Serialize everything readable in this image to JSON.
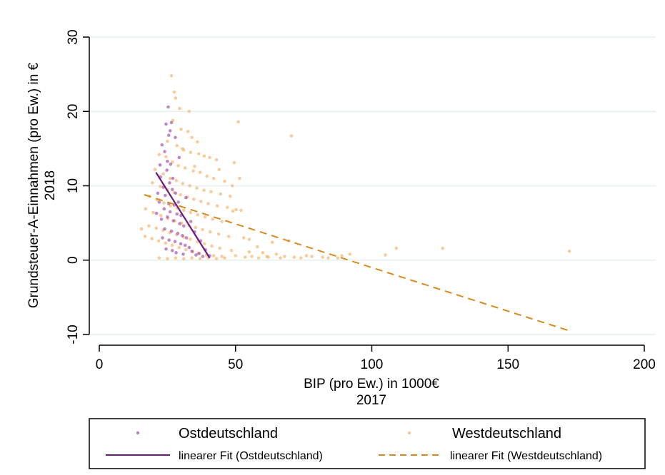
{
  "chart_data": {
    "type": "scatter",
    "title": "",
    "xlabel": "BIP (pro Ew.) in 1000€",
    "xlabel_sub": "2017",
    "ylabel": "Grundsteuer-A-Einnahmen (pro Ew.) in €",
    "ylabel_sub": "2018",
    "xlim": [
      -4,
      204
    ],
    "ylim": [
      -12,
      31
    ],
    "x_ticks": [
      0,
      50,
      100,
      150,
      200
    ],
    "x_tick_labels": [
      "0",
      "50",
      "100",
      "150",
      "200"
    ],
    "y_ticks": [
      -10,
      0,
      10,
      20,
      30
    ],
    "y_tick_labels": [
      "-10",
      "0",
      "10",
      "20",
      "30"
    ],
    "grid": "horizontal",
    "legend_position": "bottom",
    "colors": {
      "ost": "#8a2a9a",
      "west": "#f5a24b",
      "ost_fit": "#6b1b7a",
      "west_fit": "#d98a1c",
      "grid": "#e6efef"
    },
    "series": [
      {
        "name": "Ostdeutschland",
        "kind": "scatter",
        "points": [
          [
            24.5,
            18.3
          ],
          [
            26.0,
            17.4
          ],
          [
            25.5,
            16.8
          ],
          [
            26.5,
            18.5
          ],
          [
            23.0,
            15.5
          ],
          [
            24.0,
            14.6
          ],
          [
            25.0,
            13.3
          ],
          [
            26.2,
            12.9
          ],
          [
            22.5,
            11.2
          ],
          [
            24.8,
            12.1
          ],
          [
            27.0,
            11.0
          ],
          [
            25.8,
            10.4
          ],
          [
            23.5,
            9.8
          ],
          [
            26.8,
            9.5
          ],
          [
            28.0,
            9.0
          ],
          [
            24.2,
            8.7
          ],
          [
            22.0,
            7.8
          ],
          [
            25.5,
            7.6
          ],
          [
            27.5,
            7.4
          ],
          [
            29.0,
            7.8
          ],
          [
            23.8,
            6.9
          ],
          [
            26.0,
            6.5
          ],
          [
            28.5,
            6.2
          ],
          [
            30.0,
            6.0
          ],
          [
            22.8,
            5.5
          ],
          [
            25.0,
            5.8
          ],
          [
            27.2,
            5.3
          ],
          [
            29.5,
            4.9
          ],
          [
            31.0,
            4.6
          ],
          [
            24.0,
            4.2
          ],
          [
            26.5,
            3.9
          ],
          [
            28.8,
            3.6
          ],
          [
            30.5,
            3.3
          ],
          [
            32.0,
            3.0
          ],
          [
            23.2,
            3.0
          ],
          [
            25.6,
            2.7
          ],
          [
            27.8,
            2.5
          ],
          [
            29.9,
            2.2
          ],
          [
            31.5,
            2.0
          ],
          [
            33.0,
            1.7
          ],
          [
            24.5,
            1.5
          ],
          [
            26.8,
            1.3
          ],
          [
            28.2,
            1.0
          ],
          [
            30.8,
            0.8
          ],
          [
            34.0,
            1.2
          ],
          [
            35.5,
            0.7
          ],
          [
            36.5,
            0.9
          ],
          [
            38.0,
            0.5
          ],
          [
            21.5,
            9.0
          ],
          [
            22.3,
            12.8
          ],
          [
            27.9,
            16.5
          ],
          [
            25.3,
            20.6
          ],
          [
            29.3,
            13.8
          ],
          [
            31.8,
            8.4
          ],
          [
            33.6,
            5.2
          ],
          [
            35.0,
            3.8
          ],
          [
            37.2,
            2.6
          ],
          [
            39.0,
            1.4
          ],
          [
            40.5,
            0.6
          ],
          [
            21.0,
            6.3
          ]
        ]
      },
      {
        "name": "Westdeutschland",
        "kind": "scatter",
        "points": [
          [
            26.5,
            24.8
          ],
          [
            27.5,
            22.6
          ],
          [
            28.0,
            21.8
          ],
          [
            29.5,
            20.4
          ],
          [
            33.0,
            20.0
          ],
          [
            51.0,
            18.6
          ],
          [
            70.5,
            16.7
          ],
          [
            27.0,
            18.8
          ],
          [
            30.0,
            17.6
          ],
          [
            32.5,
            17.3
          ],
          [
            34.0,
            16.5
          ],
          [
            36.0,
            15.9
          ],
          [
            25.0,
            16.0
          ],
          [
            28.5,
            15.4
          ],
          [
            31.0,
            14.8
          ],
          [
            33.5,
            14.5
          ],
          [
            36.5,
            14.3
          ],
          [
            38.5,
            14.0
          ],
          [
            40.5,
            13.8
          ],
          [
            43.0,
            13.5
          ],
          [
            49.5,
            13.1
          ],
          [
            22.0,
            14.2
          ],
          [
            24.5,
            13.9
          ],
          [
            26.8,
            13.2
          ],
          [
            29.0,
            12.7
          ],
          [
            31.5,
            12.4
          ],
          [
            34.5,
            12.0
          ],
          [
            37.0,
            11.8
          ],
          [
            39.5,
            11.3
          ],
          [
            42.0,
            11.0
          ],
          [
            46.0,
            10.6
          ],
          [
            51.5,
            11.0
          ],
          [
            20.5,
            12.2
          ],
          [
            23.5,
            11.6
          ],
          [
            26.0,
            11.0
          ],
          [
            28.3,
            10.7
          ],
          [
            30.6,
            10.3
          ],
          [
            33.2,
            10.0
          ],
          [
            35.8,
            9.7
          ],
          [
            38.4,
            9.4
          ],
          [
            41.0,
            9.2
          ],
          [
            44.5,
            8.9
          ],
          [
            48.0,
            8.6
          ],
          [
            19.5,
            10.4
          ],
          [
            22.4,
            9.9
          ],
          [
            24.9,
            9.5
          ],
          [
            27.4,
            9.1
          ],
          [
            29.8,
            8.8
          ],
          [
            32.3,
            8.5
          ],
          [
            34.7,
            8.2
          ],
          [
            37.3,
            7.9
          ],
          [
            40.0,
            7.6
          ],
          [
            43.3,
            7.3
          ],
          [
            47.0,
            7.1
          ],
          [
            50.2,
            6.8
          ],
          [
            18.5,
            8.6
          ],
          [
            21.2,
            8.1
          ],
          [
            23.7,
            7.7
          ],
          [
            26.1,
            7.3
          ],
          [
            28.6,
            7.0
          ],
          [
            31.0,
            6.7
          ],
          [
            33.5,
            6.4
          ],
          [
            36.1,
            6.1
          ],
          [
            38.8,
            5.8
          ],
          [
            41.6,
            5.5
          ],
          [
            45.0,
            5.2
          ],
          [
            49.0,
            6.6
          ],
          [
            52.0,
            6.7
          ],
          [
            17.0,
            6.9
          ],
          [
            19.8,
            6.4
          ],
          [
            22.6,
            6.0
          ],
          [
            25.2,
            5.6
          ],
          [
            27.7,
            5.3
          ],
          [
            30.2,
            5.0
          ],
          [
            32.7,
            4.7
          ],
          [
            35.3,
            4.4
          ],
          [
            37.9,
            4.1
          ],
          [
            40.7,
            3.8
          ],
          [
            43.8,
            3.5
          ],
          [
            47.5,
            3.2
          ],
          [
            53.0,
            3.0
          ],
          [
            15.5,
            4.2
          ],
          [
            18.2,
            4.6
          ],
          [
            20.9,
            4.3
          ],
          [
            23.4,
            4.0
          ],
          [
            25.9,
            3.7
          ],
          [
            28.4,
            3.4
          ],
          [
            30.9,
            3.1
          ],
          [
            33.4,
            2.8
          ],
          [
            36.0,
            2.5
          ],
          [
            38.6,
            2.2
          ],
          [
            41.3,
            1.9
          ],
          [
            44.2,
            1.6
          ],
          [
            48.5,
            1.3
          ],
          [
            55.0,
            1.1
          ],
          [
            60.0,
            1.0
          ],
          [
            65.0,
            0.8
          ],
          [
            16.8,
            3.2
          ],
          [
            19.3,
            2.9
          ],
          [
            21.8,
            2.6
          ],
          [
            24.3,
            2.3
          ],
          [
            26.8,
            2.0
          ],
          [
            29.3,
            1.7
          ],
          [
            31.8,
            1.4
          ],
          [
            34.3,
            1.1
          ],
          [
            36.8,
            0.9
          ],
          [
            39.3,
            0.7
          ],
          [
            42.0,
            0.6
          ],
          [
            45.0,
            0.5
          ],
          [
            50.0,
            0.6
          ],
          [
            56.0,
            0.5
          ],
          [
            62.0,
            0.4
          ],
          [
            68.0,
            0.5
          ],
          [
            74.0,
            0.3
          ],
          [
            78.0,
            0.5
          ],
          [
            84.0,
            0.3
          ],
          [
            89.0,
            0.6
          ],
          [
            92.0,
            0.8
          ],
          [
            105.0,
            0.7
          ],
          [
            109.0,
            1.6
          ],
          [
            126.0,
            1.6
          ],
          [
            172.5,
            1.2
          ],
          [
            22.0,
            0.3
          ],
          [
            25.0,
            0.2
          ],
          [
            28.0,
            0.3
          ],
          [
            31.0,
            0.2
          ],
          [
            34.0,
            0.3
          ],
          [
            37.0,
            0.2
          ],
          [
            40.0,
            0.3
          ],
          [
            43.0,
            0.2
          ],
          [
            46.0,
            0.3
          ],
          [
            53.5,
            0.4
          ],
          [
            58.5,
            0.3
          ],
          [
            61.5,
            0.5
          ],
          [
            66.5,
            0.3
          ],
          [
            71.5,
            0.4
          ],
          [
            76.0,
            0.6
          ],
          [
            82.0,
            0.4
          ],
          [
            87.5,
            0.3
          ],
          [
            30.5,
            15.0
          ],
          [
            35.0,
            12.6
          ],
          [
            44.0,
            12.2
          ],
          [
            48.8,
            10.0
          ],
          [
            55.0,
            2.8
          ],
          [
            58.0,
            1.8
          ],
          [
            63.5,
            2.4
          ],
          [
            69.5,
            2.6
          ]
        ]
      },
      {
        "name": "linearer Fit (Ostdeutschland)",
        "kind": "line",
        "style": "solid",
        "x": [
          20.8,
          40.5
        ],
        "y": [
          11.8,
          0.3
        ]
      },
      {
        "name": "linearer Fit (Westdeutschland)",
        "kind": "line",
        "style": "dashed",
        "x": [
          16.5,
          172.5
        ],
        "y": [
          8.8,
          -9.5
        ]
      }
    ]
  }
}
